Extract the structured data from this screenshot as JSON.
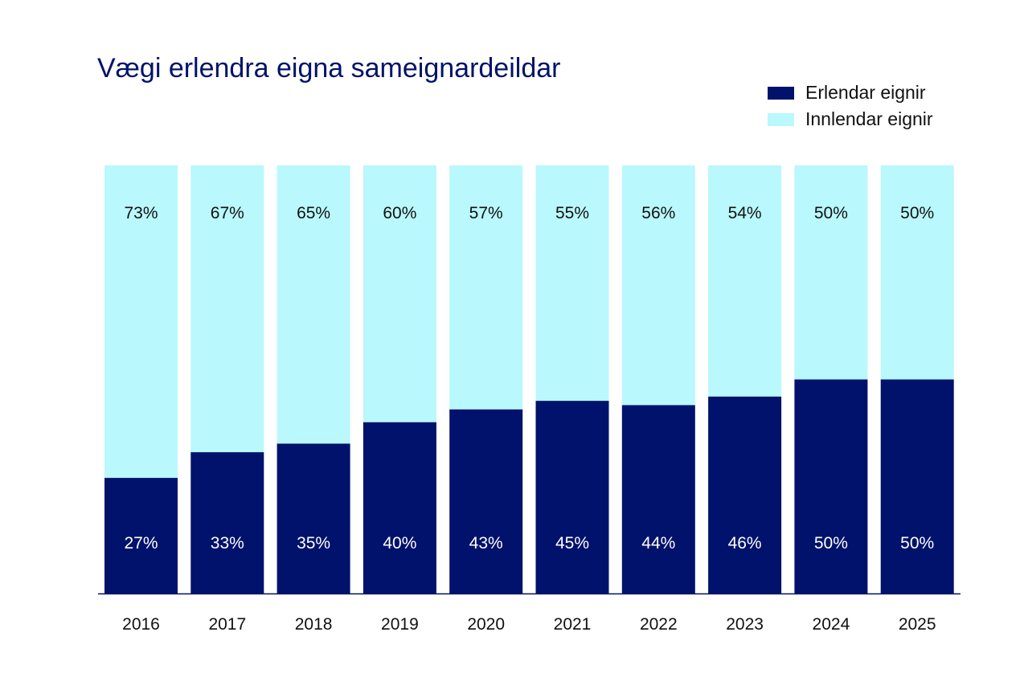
{
  "chart_data": {
    "type": "bar",
    "stacked": true,
    "normalized_percent": true,
    "title": "Vægi erlendra eigna sameignardeildar",
    "categories": [
      "2016",
      "2017",
      "2018",
      "2019",
      "2020",
      "2021",
      "2022",
      "2023",
      "2024",
      "2025"
    ],
    "series": [
      {
        "name": "Erlendar eignir",
        "color": "#00126b",
        "values": [
          27,
          33,
          35,
          40,
          43,
          45,
          44,
          46,
          50,
          50
        ]
      },
      {
        "name": "Innlendar eignir",
        "color": "#b9f8fc",
        "values": [
          73,
          67,
          65,
          60,
          57,
          55,
          56,
          54,
          50,
          50
        ]
      }
    ],
    "legend_position": "top-right",
    "grid": false,
    "ylim": [
      0,
      100
    ]
  }
}
